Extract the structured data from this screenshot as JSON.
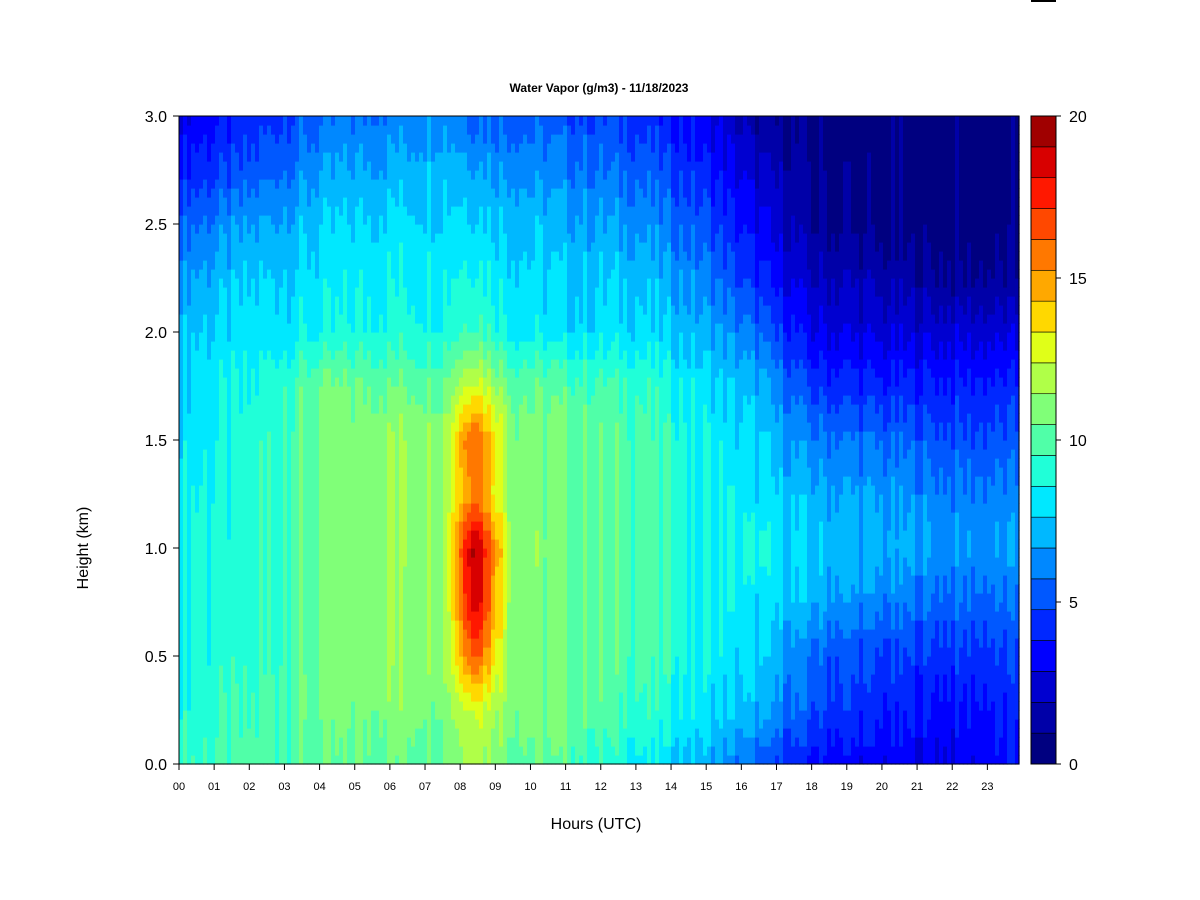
{
  "chart_data": {
    "type": "heatmap",
    "title": "Water Vapor (g/m3) - 11/18/2023",
    "xlabel": "Hours (UTC)",
    "ylabel": "Height (km)",
    "xlim": [
      0,
      23.9
    ],
    "ylim": [
      0,
      3
    ],
    "x_ticks": [
      "00",
      "01",
      "02",
      "03",
      "04",
      "05",
      "06",
      "07",
      "08",
      "09",
      "10",
      "11",
      "12",
      "13",
      "14",
      "15",
      "16",
      "17",
      "18",
      "19",
      "20",
      "21",
      "22",
      "23"
    ],
    "y_ticks": [
      "0.0",
      "0.5",
      "1.0",
      "1.5",
      "2.0",
      "2.5",
      "3.0"
    ],
    "colorbar": {
      "min": 0,
      "max": 20,
      "ticks": [
        "0",
        "5",
        "10",
        "15",
        "20"
      ],
      "colors": [
        "#000080",
        "#0000A8",
        "#0000D0",
        "#0000FF",
        "#0028FF",
        "#0058FF",
        "#0088FF",
        "#00B8FF",
        "#00E8FF",
        "#20FFD8",
        "#50FFA8",
        "#80FF78",
        "#B0FF48",
        "#E0FF18",
        "#FFD800",
        "#FFA800",
        "#FF7800",
        "#FF4800",
        "#FF1800",
        "#D80000",
        "#A00000"
      ]
    },
    "heights_km": [
      0.0,
      0.25,
      0.5,
      0.75,
      1.0,
      1.25,
      1.5,
      1.75,
      2.0,
      2.25,
      2.5,
      2.75,
      3.0
    ],
    "series": [
      {
        "hour": 0,
        "values": [
          9.5,
          9.0,
          8.8,
          8.8,
          8.8,
          8.5,
          8.0,
          8.0,
          7.5,
          6.5,
          5.5,
          4.0,
          3.0
        ]
      },
      {
        "hour": 2,
        "values": [
          9.8,
          9.5,
          9.0,
          9.0,
          9.0,
          9.0,
          9.0,
          8.5,
          8.0,
          7.5,
          6.5,
          5.0,
          4.0
        ]
      },
      {
        "hour": 4,
        "values": [
          10.0,
          10.5,
          10.5,
          10.5,
          10.5,
          10.5,
          10.5,
          10.5,
          8.5,
          8.0,
          7.5,
          6.5,
          5.5
        ]
      },
      {
        "hour": 6,
        "values": [
          10.5,
          11.0,
          11.5,
          11.5,
          11.5,
          11.5,
          11.5,
          10.5,
          9.0,
          8.5,
          8.0,
          7.0,
          6.0
        ]
      },
      {
        "hour": 7.5,
        "values": [
          10.5,
          11.0,
          11.0,
          11.0,
          11.5,
          11.5,
          11.5,
          10.5,
          9.0,
          8.5,
          8.0,
          7.5,
          6.5
        ]
      },
      {
        "hour": 8.4,
        "values": [
          12.0,
          13.0,
          17.0,
          19.5,
          20.0,
          16.0,
          17.0,
          13.0,
          10.0,
          9.0,
          8.0,
          7.0,
          5.5
        ]
      },
      {
        "hour": 9.5,
        "values": [
          10.5,
          11.0,
          11.0,
          11.0,
          11.5,
          11.0,
          11.0,
          10.5,
          8.5,
          8.0,
          7.5,
          6.5,
          5.5
        ]
      },
      {
        "hour": 11,
        "values": [
          10.0,
          10.5,
          10.5,
          10.5,
          10.5,
          10.5,
          10.5,
          10.0,
          8.0,
          7.5,
          7.0,
          6.0,
          5.0
        ]
      },
      {
        "hour": 13,
        "values": [
          8.5,
          9.5,
          10.0,
          10.0,
          10.0,
          10.0,
          10.0,
          9.5,
          8.0,
          7.5,
          6.5,
          5.5,
          4.5
        ]
      },
      {
        "hour": 15,
        "values": [
          7.0,
          8.0,
          8.5,
          8.5,
          8.5,
          8.5,
          8.5,
          8.0,
          7.0,
          6.0,
          5.0,
          4.0,
          3.0
        ]
      },
      {
        "hour": 16.5,
        "values": [
          5.0,
          7.0,
          7.5,
          8.0,
          8.5,
          8.0,
          7.5,
          7.0,
          5.5,
          4.0,
          3.0,
          2.0,
          1.0
        ]
      },
      {
        "hour": 18,
        "values": [
          3.5,
          5.0,
          5.5,
          7.0,
          7.5,
          7.0,
          6.0,
          4.5,
          3.0,
          2.0,
          1.0,
          1.0,
          0.5
        ]
      },
      {
        "hour": 20,
        "values": [
          3.0,
          4.0,
          4.5,
          6.0,
          7.0,
          6.5,
          5.5,
          4.0,
          2.5,
          1.5,
          0.5,
          0.5,
          0.5
        ]
      },
      {
        "hour": 22,
        "values": [
          3.0,
          3.5,
          4.5,
          5.5,
          6.5,
          6.0,
          5.0,
          4.0,
          2.5,
          1.0,
          0.5,
          0.5,
          0.5
        ]
      },
      {
        "hour": 23.9,
        "values": [
          3.5,
          4.0,
          4.5,
          5.5,
          6.5,
          6.0,
          5.0,
          4.0,
          2.5,
          1.0,
          0.5,
          0.5,
          0.5
        ]
      }
    ]
  }
}
